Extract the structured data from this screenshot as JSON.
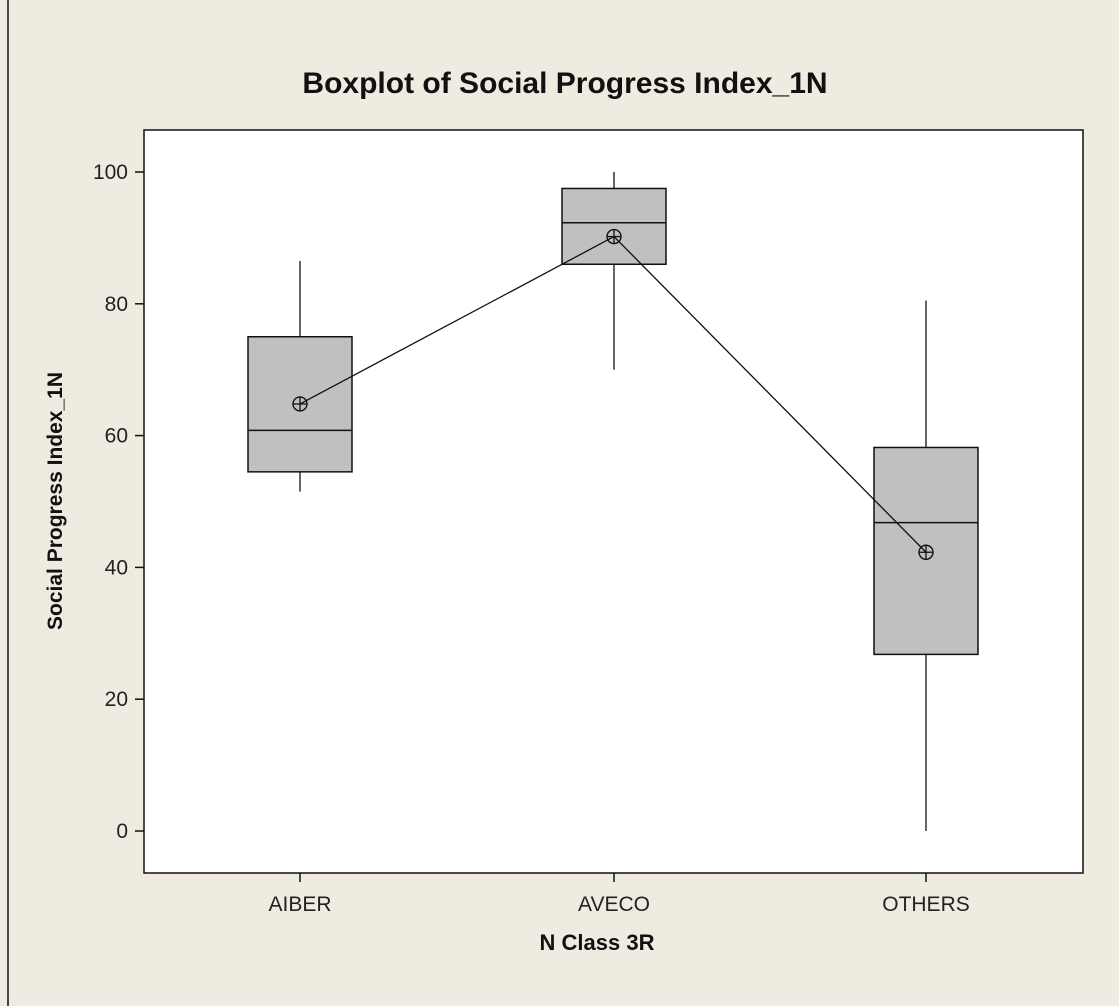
{
  "chart_data": {
    "type": "boxplot",
    "title": "Boxplot of Social Progress Index_1N",
    "xlabel": "N Class 3R",
    "ylabel": "Social Progress Index_1N",
    "ylim": [
      -6,
      106
    ],
    "yticks": [
      0,
      20,
      40,
      60,
      80,
      100
    ],
    "categories": [
      "AIBER",
      "AVECO",
      "OTHERS"
    ],
    "boxes": [
      {
        "category": "AIBER",
        "min": 51.5,
        "q1": 54.5,
        "median": 60.8,
        "q3": 75.0,
        "max": 86.5,
        "mean": 64.8
      },
      {
        "category": "AVECO",
        "min": 70.0,
        "q1": 86.0,
        "median": 92.3,
        "q3": 97.5,
        "max": 100.0,
        "mean": 90.2
      },
      {
        "category": "OTHERS",
        "min": 0.0,
        "q1": 26.8,
        "median": 46.8,
        "q3": 58.2,
        "max": 80.5,
        "mean": 42.3
      }
    ],
    "mean_connect_line": true,
    "box_fill": "#c0c0c0",
    "frame_color": "#111111",
    "plot_background": "#ffffff",
    "page_background": "#f0ebe1"
  }
}
